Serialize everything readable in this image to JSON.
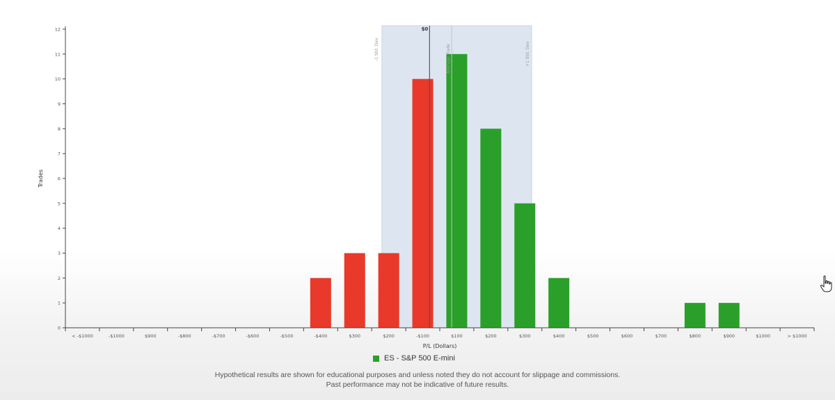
{
  "chart_data": {
    "type": "bar",
    "categories": [
      "< -$1000",
      "-$1000",
      "$900",
      "-$800",
      "-$700",
      "-$600",
      "-$500",
      "-$400",
      "$300",
      "$200",
      "-$100",
      "$100",
      "$200",
      "$300",
      "$400",
      "$500",
      "$600",
      "$700",
      "$800",
      "$900",
      "$1000",
      "> $1000"
    ],
    "values": [
      0,
      0,
      0,
      0,
      0,
      0,
      0,
      2,
      3,
      3,
      10,
      11,
      8,
      5,
      2,
      0,
      0,
      0,
      1,
      1,
      0,
      0
    ],
    "colors": [
      "#e8392a",
      "#e8392a",
      "#e8392a",
      "#e8392a",
      "#e8392a",
      "#e8392a",
      "#e8392a",
      "#e8392a",
      "#e8392a",
      "#e8392a",
      "#e8392a",
      "#2aa02a",
      "#2aa02a",
      "#2aa02a",
      "#2aa02a",
      "#2aa02a",
      "#2aa02a",
      "#2aa02a",
      "#2aa02a",
      "#2aa02a",
      "#2aa02a",
      "#2aa02a"
    ],
    "xlabel": "P/L (Dollars)",
    "ylabel": "Trades",
    "ylim": [
      0,
      12
    ],
    "yticks": [
      0,
      1,
      2,
      3,
      4,
      5,
      6,
      7,
      8,
      9,
      10,
      11,
      12
    ],
    "std_dev_band": {
      "from_category_index": 9.3,
      "to_category_index": 13.7,
      "color": "#dde6f0"
    },
    "zero_line": {
      "at_category_index": 10.7,
      "label": "$0"
    },
    "average_trade_line": {
      "at_category_index": 11.35
    },
    "annotations": {
      "minus_std": "-1 Std. Dev",
      "plus_std": "+1 Std. Dev",
      "avg": "Average Trade"
    },
    "grid": false
  },
  "legend": {
    "label": "ES - S&P 500 E-mini",
    "color": "#2aa02a"
  },
  "disclaimer": {
    "line1": "Hypothetical results are shown for educational purposes and unless noted they do not account for slippage and commissions.",
    "line2": "Past performance may not be indicative of future results."
  }
}
